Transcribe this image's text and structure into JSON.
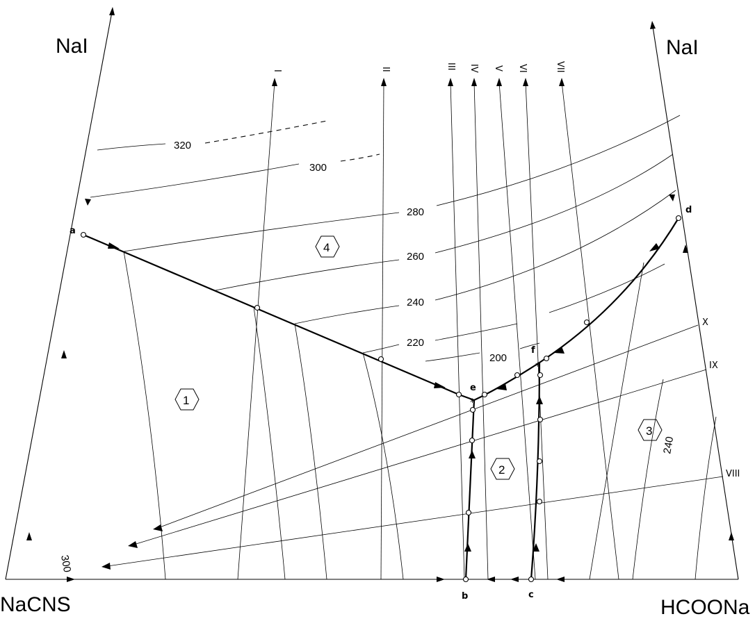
{
  "corners": {
    "left_top": "NaI",
    "right_top": "NaI",
    "bottom_left": "NaCNS",
    "bottom_right": "HCOONa"
  },
  "sections": {
    "vertical": [
      "I",
      "II",
      "III",
      "IV",
      "V",
      "VI",
      "VII"
    ],
    "diagonal": [
      "VIII",
      "IX",
      "X"
    ]
  },
  "isotherms": {
    "top": [
      "320",
      "300",
      "280",
      "260",
      "240",
      "220",
      "200"
    ],
    "right_field": "240",
    "left_field": "300"
  },
  "points": {
    "a": "a",
    "b": "b",
    "c": "c",
    "d": "d",
    "e": "e",
    "f": "f"
  },
  "fields": [
    "1",
    "2",
    "3",
    "4"
  ]
}
